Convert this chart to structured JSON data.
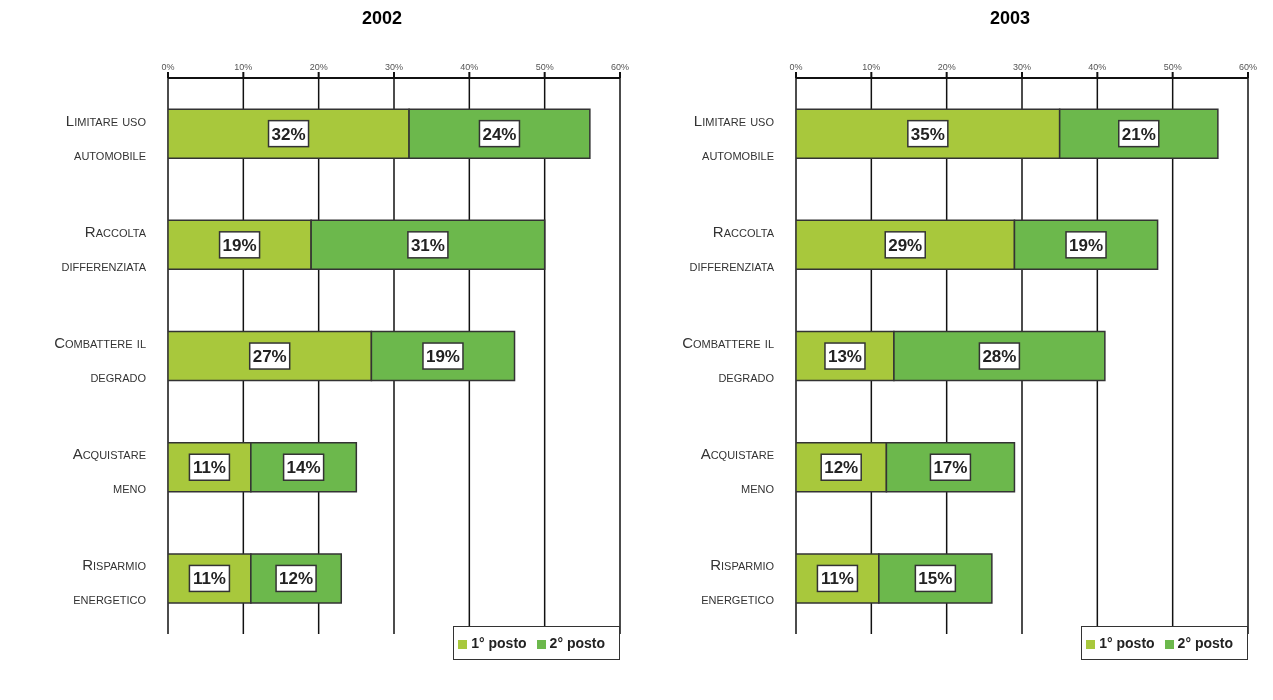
{
  "chart_data": [
    {
      "type": "bar",
      "title": "2002",
      "orientation": "horizontal",
      "stacked": true,
      "categories": [
        "Limitare uso automobile",
        "Raccolta differenziata",
        "Combattere il degrado",
        "Acquistare meno",
        "Risparmio energetico"
      ],
      "series": [
        {
          "name": "1° posto",
          "color": "#a8c83c",
          "values": [
            32,
            19,
            27,
            11,
            11
          ],
          "value_labels": [
            "32%",
            "19%",
            "27%",
            "11%",
            "11%"
          ]
        },
        {
          "name": "2° posto",
          "color": "#6cb84c",
          "values": [
            24,
            31,
            19,
            14,
            12
          ],
          "value_labels": [
            "24%",
            "31%",
            "19%",
            "14%",
            "12%"
          ]
        }
      ],
      "xlim": [
        0,
        60
      ],
      "xticks": [
        {
          "value": 0,
          "label": "0%"
        },
        {
          "value": 10,
          "label": "10%"
        },
        {
          "value": 20,
          "label": "20%"
        },
        {
          "value": 30,
          "label": "30%"
        },
        {
          "value": 40,
          "label": "40%"
        },
        {
          "value": 50,
          "label": "50%"
        },
        {
          "value": 60,
          "label": "60%"
        }
      ],
      "grid": "x",
      "legend": "bottom right"
    },
    {
      "type": "bar",
      "title": "2003",
      "orientation": "horizontal",
      "stacked": true,
      "categories": [
        "Limitare uso automobile",
        "Raccolta differenziata",
        "Combattere il degrado",
        "Acquistare meno",
        "Risparmio energetico"
      ],
      "series": [
        {
          "name": "1° posto",
          "color": "#a8c83c",
          "values": [
            35,
            29,
            13,
            12,
            11
          ],
          "value_labels": [
            "35%",
            "29%",
            "13%",
            "12%",
            "11%"
          ]
        },
        {
          "name": "2° posto",
          "color": "#6cb84c",
          "values": [
            21,
            19,
            28,
            17,
            15
          ],
          "value_labels": [
            "21%",
            "19%",
            "28%",
            "17%",
            "15%"
          ]
        }
      ],
      "xlim": [
        0,
        60
      ],
      "xticks": [
        {
          "value": 0,
          "label": "0%"
        },
        {
          "value": 10,
          "label": "10%"
        },
        {
          "value": 20,
          "label": "20%"
        },
        {
          "value": 30,
          "label": "30%"
        },
        {
          "value": 40,
          "label": "40%"
        },
        {
          "value": 50,
          "label": "50%"
        },
        {
          "value": 60,
          "label": "60%"
        }
      ],
      "grid": "x",
      "legend": "bottom right"
    }
  ]
}
